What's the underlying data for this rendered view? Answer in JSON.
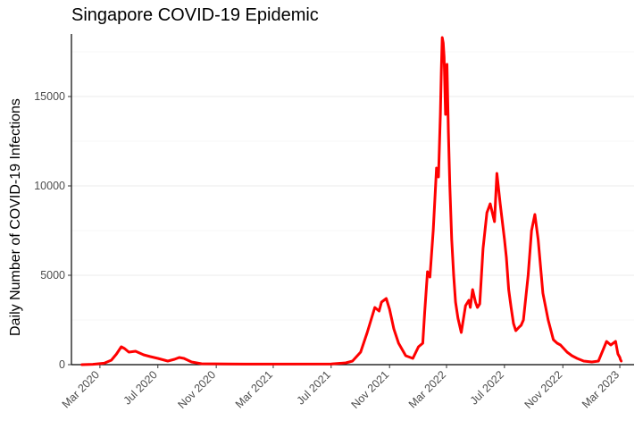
{
  "chart_data": {
    "type": "line",
    "title": "Singapore COVID-19 Epidemic",
    "xlabel": "",
    "ylabel": "Daily Number of COVID-19 Infections",
    "ylim": [
      0,
      18500
    ],
    "xlim": [
      "2020-01-01",
      "2023-03-31"
    ],
    "grid": "horizontal",
    "line_color": "#ff0000",
    "y_ticks": [
      0,
      5000,
      10000,
      15000
    ],
    "x_ticks": [
      {
        "date": "2020-03-01",
        "label": "Mar 2020"
      },
      {
        "date": "2020-07-01",
        "label": "Jul 2020"
      },
      {
        "date": "2020-11-01",
        "label": "Nov 2020"
      },
      {
        "date": "2021-03-01",
        "label": "Mar 2021"
      },
      {
        "date": "2021-07-01",
        "label": "Jul 2021"
      },
      {
        "date": "2021-11-01",
        "label": "Nov 2021"
      },
      {
        "date": "2022-03-01",
        "label": "Mar 2022"
      },
      {
        "date": "2022-07-01",
        "label": "Jul 2022"
      },
      {
        "date": "2022-11-01",
        "label": "Nov 2022"
      },
      {
        "date": "2023-03-01",
        "label": "Mar 2023"
      }
    ],
    "series": [
      {
        "x": [
          "2020-01-23",
          "2020-02-15",
          "2020-03-10",
          "2020-03-25",
          "2020-04-05",
          "2020-04-15",
          "2020-04-22",
          "2020-05-01",
          "2020-05-15",
          "2020-06-01",
          "2020-06-15",
          "2020-07-01",
          "2020-07-15",
          "2020-07-22",
          "2020-08-05",
          "2020-08-15",
          "2020-08-25",
          "2020-09-10",
          "2020-10-01",
          "2021-01-01",
          "2021-07-01",
          "2021-08-01",
          "2021-08-15",
          "2021-09-01",
          "2021-09-15",
          "2021-10-01",
          "2021-10-10",
          "2021-10-15",
          "2021-10-25",
          "2021-11-01",
          "2021-11-10",
          "2021-11-20",
          "2021-12-05",
          "2021-12-20",
          "2022-01-01",
          "2022-01-10",
          "2022-01-14",
          "2022-01-20",
          "2022-01-25",
          "2022-02-01",
          "2022-02-08",
          "2022-02-12",
          "2022-02-16",
          "2022-02-18",
          "2022-02-20",
          "2022-02-22",
          "2022-02-24",
          "2022-02-27",
          "2022-03-02",
          "2022-03-05",
          "2022-03-08",
          "2022-03-12",
          "2022-03-16",
          "2022-03-20",
          "2022-03-25",
          "2022-04-01",
          "2022-04-10",
          "2022-04-17",
          "2022-04-20",
          "2022-04-25",
          "2022-05-01",
          "2022-05-05",
          "2022-05-10",
          "2022-05-17",
          "2022-05-25",
          "2022-06-01",
          "2022-06-10",
          "2022-06-15",
          "2022-06-22",
          "2022-07-01",
          "2022-07-05",
          "2022-07-10",
          "2022-07-15",
          "2022-07-20",
          "2022-07-25",
          "2022-08-01",
          "2022-08-05",
          "2022-08-10",
          "2022-08-20",
          "2022-08-27",
          "2022-09-03",
          "2022-09-10",
          "2022-09-20",
          "2022-10-01",
          "2022-10-08",
          "2022-10-12",
          "2022-10-16",
          "2022-10-20",
          "2022-10-27",
          "2022-11-03",
          "2022-11-10",
          "2022-11-20",
          "2022-12-01",
          "2022-12-15",
          "2023-01-01",
          "2023-01-15",
          "2023-02-01",
          "2023-02-10",
          "2023-02-20",
          "2023-02-25",
          "2023-03-01",
          "2023-03-02",
          "2023-03-04"
        ],
        "y": [
          0,
          20,
          80,
          250,
          600,
          1000,
          900,
          700,
          750,
          550,
          450,
          350,
          250,
          200,
          300,
          400,
          350,
          150,
          50,
          30,
          40,
          100,
          200,
          700,
          1800,
          3200,
          3000,
          3500,
          3700,
          3100,
          2000,
          1200,
          500,
          350,
          1000,
          1200,
          2900,
          5200,
          4900,
          7500,
          11000,
          10500,
          14000,
          16500,
          18300,
          18000,
          17200,
          14000,
          16800,
          13000,
          10000,
          7000,
          5000,
          3500,
          2600,
          1800,
          3300,
          3600,
          3200,
          4200,
          3500,
          3200,
          3400,
          6500,
          8500,
          9000,
          8000,
          10700,
          9000,
          7000,
          6000,
          4200,
          3200,
          2300,
          1900,
          2100,
          2200,
          2500,
          5000,
          7500,
          8400,
          7000,
          4000,
          2500,
          1800,
          1400,
          1300,
          1200,
          1100,
          900,
          700,
          500,
          350,
          200,
          150,
          200,
          1300,
          1100,
          1300,
          600,
          400,
          300,
          200
        ]
      }
    ]
  }
}
